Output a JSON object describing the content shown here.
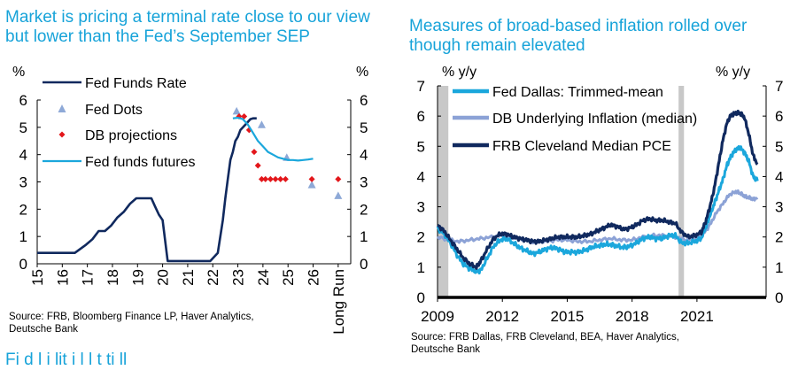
{
  "left_panel": {
    "title": "Market is pricing a terminal rate close to our view but lower than the Fed’s September SEP",
    "source": "Source: FRB, Bloomberg Finance LP, Haver Analytics,\nDeutsche Bank"
  },
  "right_panel": {
    "title": "Measures of broad-based inflation rolled over though remain elevated",
    "source": "Source: FRB Dallas, FRB Cleveland, BEA, Haver Analytics,\nDeutsche Bank"
  },
  "bottom_partial_text": "Fi                      d l           i               lit                          i         l       l      t      ti  ll",
  "colors": {
    "navy": "#10295e",
    "lightblue": "#1ba7dc",
    "steelblue": "#8ca2d6",
    "dots": "#8ea9d7",
    "red": "#e3171b",
    "recession": "#c8c8c8",
    "title": "#17a3d9"
  },
  "chart_data": [
    {
      "type": "line",
      "y_left_label": "%",
      "y_right_label": "%",
      "ylim": [
        0,
        6
      ],
      "yticks": [
        "0",
        "1",
        "2",
        "3",
        "4",
        "5",
        "6"
      ],
      "xlim": [
        2015,
        2027.5
      ],
      "xtick_labels": [
        "15",
        "16",
        "17",
        "18",
        "19",
        "20",
        "21",
        "22",
        "23",
        "24",
        "25",
        "26",
        "Long Run"
      ],
      "xtick_values": [
        2015,
        2016,
        2017,
        2018,
        2019,
        2020,
        2021,
        2022,
        2023,
        2024,
        2025,
        2026,
        2027
      ],
      "legend_position": "top-left",
      "grid": false,
      "series": [
        {
          "name": "Fed Funds Rate",
          "kind": "line",
          "color": "#10295e",
          "x": [
            2015.0,
            2015.5,
            2016.0,
            2016.5,
            2016.95,
            2017.2,
            2017.45,
            2017.7,
            2017.95,
            2018.2,
            2018.45,
            2018.7,
            2018.95,
            2019.3,
            2019.55,
            2019.7,
            2019.85,
            2020.0,
            2020.2,
            2020.3,
            2020.5,
            2021.0,
            2021.5,
            2021.9,
            2022.2,
            2022.4,
            2022.5,
            2022.6,
            2022.7,
            2022.8,
            2022.9,
            2023.0,
            2023.1,
            2023.3,
            2023.5,
            2023.6,
            2023.75
          ],
          "y": [
            0.4,
            0.4,
            0.4,
            0.4,
            0.7,
            0.9,
            1.2,
            1.2,
            1.4,
            1.7,
            1.9,
            2.2,
            2.4,
            2.4,
            2.4,
            2.1,
            1.8,
            1.6,
            0.1,
            0.1,
            0.1,
            0.1,
            0.1,
            0.1,
            0.4,
            1.6,
            2.4,
            3.1,
            3.8,
            4.1,
            4.5,
            4.65,
            4.9,
            5.1,
            5.3,
            5.33,
            5.33
          ]
        },
        {
          "name": "Fed Dots",
          "kind": "marker",
          "marker": "triangle",
          "color": "#8ea9d7",
          "x": [
            2022.95,
            2023.95,
            2024.95,
            2025.95,
            2027.0
          ],
          "y": [
            5.6,
            5.1,
            3.9,
            2.9,
            2.5
          ]
        },
        {
          "name": "DB projections",
          "kind": "marker",
          "marker": "diamond",
          "color": "#e3171b",
          "x": [
            2023.05,
            2023.25,
            2023.45,
            2023.65,
            2023.8,
            2023.95,
            2024.1,
            2024.3,
            2024.5,
            2024.7,
            2024.9,
            2025.95,
            2027.0
          ],
          "y": [
            5.4,
            5.4,
            4.9,
            4.1,
            3.6,
            3.1,
            3.1,
            3.1,
            3.1,
            3.1,
            3.1,
            3.1,
            3.1
          ]
        },
        {
          "name": "Fed funds futures",
          "kind": "line",
          "color": "#1ba7dc",
          "x": [
            2022.8,
            2023.0,
            2023.2,
            2023.4,
            2023.6,
            2023.8,
            2024.0,
            2024.2,
            2024.4,
            2024.6,
            2024.8,
            2025.0,
            2025.2,
            2025.4,
            2025.6,
            2025.8,
            2026.0
          ],
          "y": [
            5.33,
            5.35,
            5.3,
            5.1,
            4.8,
            4.5,
            4.3,
            4.1,
            4.0,
            3.9,
            3.85,
            3.8,
            3.8,
            3.78,
            3.8,
            3.82,
            3.85
          ]
        }
      ]
    },
    {
      "type": "line",
      "y_left_label": "% y/y",
      "y_right_label": "% y/y",
      "ylim": [
        0,
        7
      ],
      "yticks": [
        "0",
        "1",
        "2",
        "3",
        "4",
        "5",
        "6",
        "7"
      ],
      "xlim": [
        2009,
        2024.2
      ],
      "xticks": [
        "2009",
        "2012",
        "2015",
        "2018",
        "2021"
      ],
      "recessions": [
        [
          2009.0,
          2009.5
        ],
        [
          2020.15,
          2020.4
        ]
      ],
      "legend_position": "top-left",
      "grid": false,
      "series": [
        {
          "name": "Fed Dallas: Trimmed-mean",
          "color": "#1ba7dc",
          "x": [
            2009.0,
            2009.3,
            2009.6,
            2009.9,
            2010.2,
            2010.5,
            2010.8,
            2011.0,
            2011.3,
            2011.6,
            2011.9,
            2012.2,
            2012.5,
            2012.8,
            2013.1,
            2013.4,
            2013.7,
            2014.0,
            2014.3,
            2014.6,
            2014.9,
            2015.2,
            2015.5,
            2015.8,
            2016.1,
            2016.4,
            2016.7,
            2017.0,
            2017.3,
            2017.6,
            2017.9,
            2018.2,
            2018.5,
            2018.8,
            2019.1,
            2019.4,
            2019.7,
            2020.0,
            2020.3,
            2020.6,
            2020.9,
            2021.2,
            2021.4,
            2021.6,
            2021.8,
            2022.0,
            2022.2,
            2022.4,
            2022.6,
            2022.8,
            2023.0,
            2023.2,
            2023.4,
            2023.6,
            2023.8
          ],
          "y": [
            2.3,
            2.1,
            1.8,
            1.4,
            1.1,
            0.95,
            0.85,
            0.9,
            1.3,
            1.7,
            1.9,
            1.95,
            1.8,
            1.65,
            1.55,
            1.45,
            1.5,
            1.6,
            1.65,
            1.6,
            1.5,
            1.5,
            1.5,
            1.55,
            1.65,
            1.7,
            1.75,
            1.75,
            1.7,
            1.65,
            1.7,
            1.8,
            1.95,
            2.0,
            1.95,
            1.95,
            2.05,
            2.05,
            1.8,
            1.8,
            1.85,
            1.95,
            2.3,
            2.7,
            3.1,
            3.5,
            3.9,
            4.4,
            4.7,
            4.9,
            4.95,
            4.8,
            4.5,
            4.0,
            3.85
          ]
        },
        {
          "name": "DB Underlying Inflation (median)",
          "color": "#8ca2d6",
          "x": [
            2009.0,
            2009.5,
            2010.0,
            2010.5,
            2011.0,
            2011.5,
            2012.0,
            2012.5,
            2013.0,
            2013.5,
            2014.0,
            2014.5,
            2015.0,
            2015.5,
            2016.0,
            2016.5,
            2017.0,
            2017.5,
            2018.0,
            2018.5,
            2019.0,
            2019.5,
            2020.0,
            2020.5,
            2021.0,
            2021.3,
            2021.6,
            2021.9,
            2022.2,
            2022.5,
            2022.8,
            2023.0,
            2023.2,
            2023.4,
            2023.6,
            2023.8
          ],
          "y": [
            2.0,
            1.9,
            1.85,
            1.9,
            1.95,
            2.0,
            2.05,
            2.0,
            1.9,
            1.85,
            1.85,
            1.9,
            1.9,
            1.85,
            1.85,
            1.9,
            1.95,
            1.9,
            1.9,
            2.0,
            2.05,
            2.05,
            2.0,
            1.9,
            1.95,
            2.1,
            2.4,
            2.8,
            3.1,
            3.4,
            3.5,
            3.45,
            3.35,
            3.3,
            3.25,
            3.3
          ]
        },
        {
          "name": "FRB Cleveland Median PCE",
          "color": "#10295e",
          "x": [
            2009.0,
            2009.3,
            2009.6,
            2009.9,
            2010.2,
            2010.5,
            2010.8,
            2011.0,
            2011.3,
            2011.6,
            2011.9,
            2012.2,
            2012.5,
            2012.8,
            2013.1,
            2013.4,
            2013.7,
            2014.0,
            2014.3,
            2014.6,
            2014.9,
            2015.2,
            2015.5,
            2015.8,
            2016.1,
            2016.4,
            2016.7,
            2017.0,
            2017.3,
            2017.6,
            2017.9,
            2018.2,
            2018.5,
            2018.8,
            2019.1,
            2019.4,
            2019.7,
            2020.0,
            2020.3,
            2020.6,
            2020.9,
            2021.2,
            2021.4,
            2021.6,
            2021.8,
            2022.0,
            2022.2,
            2022.4,
            2022.6,
            2022.8,
            2023.0,
            2023.2,
            2023.4,
            2023.6,
            2023.8
          ],
          "y": [
            2.4,
            2.2,
            1.9,
            1.6,
            1.3,
            1.1,
            1.0,
            1.2,
            1.6,
            1.95,
            2.1,
            2.1,
            2.0,
            1.95,
            1.9,
            1.85,
            1.85,
            1.9,
            1.95,
            2.0,
            2.0,
            2.0,
            2.0,
            2.05,
            2.1,
            2.2,
            2.3,
            2.4,
            2.35,
            2.25,
            2.3,
            2.4,
            2.55,
            2.6,
            2.55,
            2.55,
            2.5,
            2.45,
            2.15,
            2.0,
            2.05,
            2.15,
            2.5,
            3.0,
            3.6,
            4.4,
            5.2,
            5.8,
            6.05,
            6.1,
            6.1,
            5.95,
            5.4,
            4.7,
            4.4
          ]
        }
      ]
    }
  ]
}
